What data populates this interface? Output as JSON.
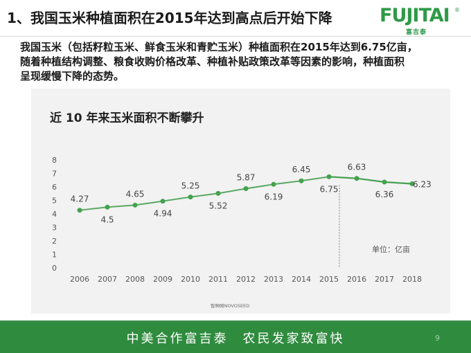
{
  "slide": {
    "title": "1、我国玉米种植面积在2015年达到高点后开始下降",
    "description": [
      "我国玉米（包括籽粒玉米、鲜食玉米和青贮玉米）种植面积在2015年达到6.75亿亩，",
      "随着种植结构调整、粮食收购价格改革、种植补贴政策改革等因素的影响，种植面积",
      "呈现缓慢下降的态势。"
    ],
    "page_number": "9"
  },
  "logo": {
    "text": "FUJITAI",
    "registered": "®",
    "subtitle": "富吉泰"
  },
  "footer": {
    "slogan": "中美合作富吉泰　农民发家致富快"
  },
  "chart_data": {
    "type": "line",
    "title": "近 10 年来玉米面积不断攀升",
    "categories": [
      "2006",
      "2007",
      "2008",
      "2009",
      "2010",
      "2011",
      "2012",
      "2013",
      "2014",
      "2015",
      "2016",
      "2017",
      "2018"
    ],
    "values": [
      4.27,
      4.5,
      4.65,
      4.94,
      5.25,
      5.52,
      5.87,
      6.19,
      6.45,
      6.75,
      6.63,
      6.36,
      6.23
    ],
    "label_positions": [
      "above",
      "below",
      "above",
      "below",
      "above",
      "below",
      "above",
      "below",
      "above",
      "below",
      "above",
      "below",
      "right"
    ],
    "ylim": [
      0,
      8
    ],
    "yticks": [
      0,
      1,
      2,
      3,
      4,
      5,
      6,
      7,
      8
    ],
    "grid": false,
    "forecast_divider_after": "2015",
    "unit_note": "单位：亿亩",
    "source": "智种网NOVOSEED",
    "colors": {
      "historical": "#5aa864",
      "forecast": "#46a050",
      "marker": "#43a24c",
      "axis_text": "#555555",
      "divider": "#7f7f7f"
    }
  }
}
